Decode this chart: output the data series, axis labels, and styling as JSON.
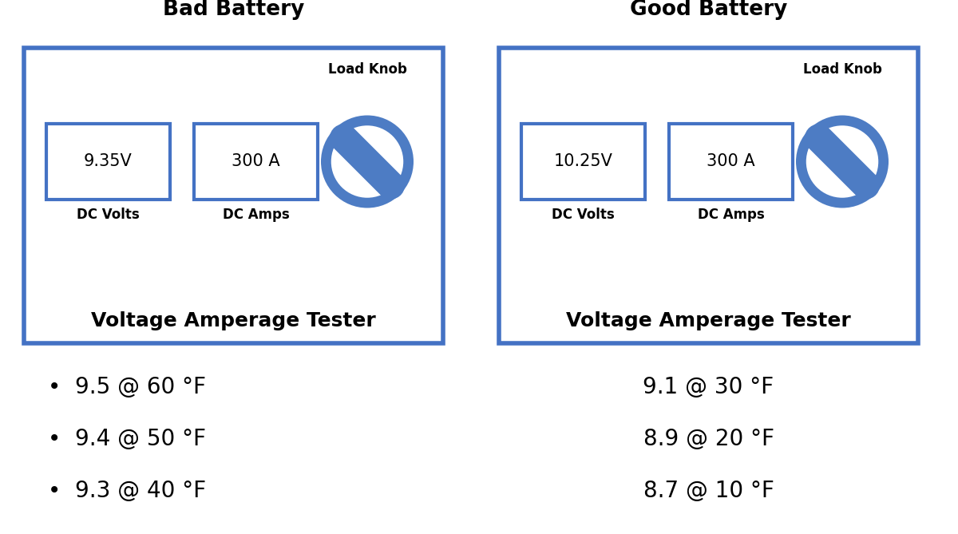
{
  "bg_color": "#ffffff",
  "border_color": "#4472c4",
  "border_lw": 4.0,
  "left_title": "Bad Battery",
  "right_title": "Good Battery",
  "left_volt": "9.35V",
  "right_volt": "10.25V",
  "left_amp": "300 A",
  "right_amp": "300 A",
  "dc_volts_label": "DC Volts",
  "dc_amps_label": "DC Amps",
  "load_knob_label": "Load Knob",
  "tester_label": "Voltage Amperage Tester",
  "left_bullets": [
    "9.5 @ 60 °F",
    "9.4 @ 50 °F",
    "9.3 @ 40 °F"
  ],
  "right_items": [
    "9.1 @ 30 °F",
    "8.9 @ 20 °F",
    "8.7 @ 10 °F"
  ],
  "knob_color": "#4d7cc4",
  "box_border_color": "#4472c4",
  "title_fontsize": 19,
  "display_fontsize": 15,
  "label_fontsize": 12,
  "tester_fontsize": 18,
  "bullet_fontsize": 20
}
